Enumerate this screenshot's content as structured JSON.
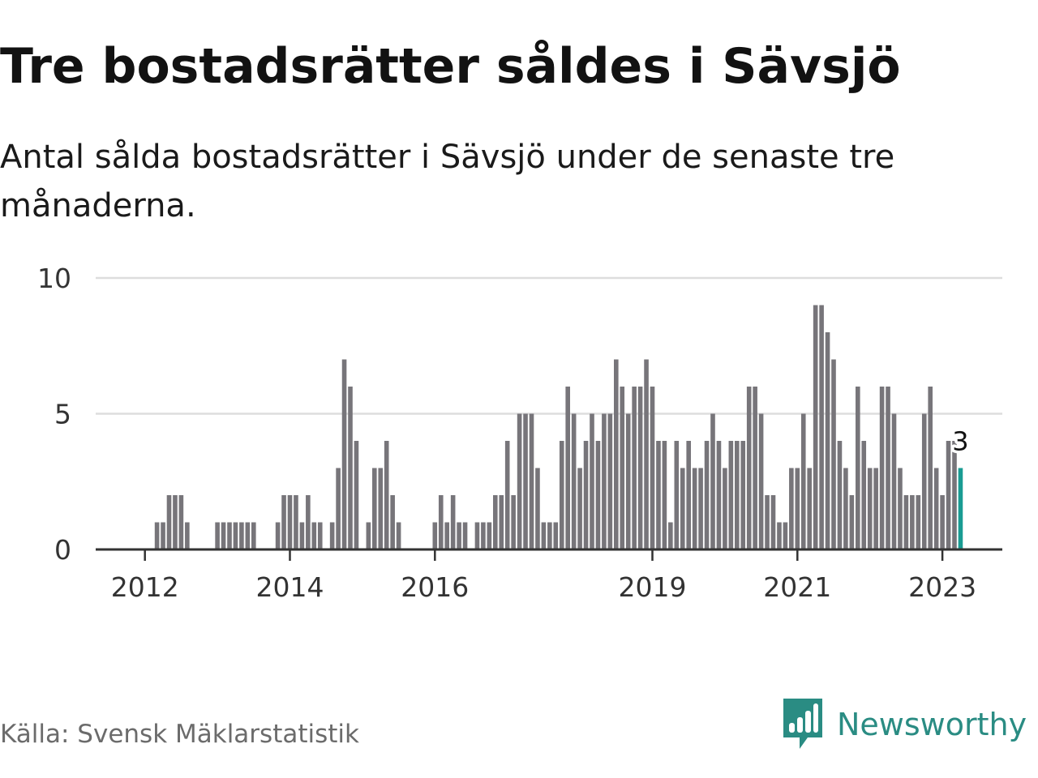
{
  "title": "Tre bostadsrätter såldes i Sävsjö",
  "subtitle": "Antal sålda bostadsrätter i Sävsjö under de senaste tre månaderna.",
  "source": "Källa: Svensk Mäklarstatistik",
  "brand": {
    "name": "Newsworthy",
    "logo_icon": "bar-chart-speech-bubble-icon"
  },
  "colors": {
    "bar": "#77757a",
    "highlight": "#1a9c93",
    "grid": "#dddddd",
    "axis": "#333333",
    "brand": "#2a8c83"
  },
  "chart_data": {
    "type": "bar",
    "title": "",
    "xlabel": "",
    "ylabel": "",
    "ylim": [
      0,
      10
    ],
    "yticks": [
      0,
      5,
      10
    ],
    "grid": true,
    "legend": "none",
    "start_month": "2011-11",
    "x_tick_labels": [
      "2012",
      "2014",
      "2016",
      "2019",
      "2021",
      "2023"
    ],
    "x_tick_months": [
      "2012-01",
      "2014-01",
      "2016-01",
      "2019-01",
      "2021-01",
      "2023-01"
    ],
    "highlight_label": "3",
    "values": [
      0,
      0,
      0,
      0,
      1,
      1,
      2,
      2,
      2,
      1,
      0,
      0,
      0,
      0,
      1,
      1,
      1,
      1,
      1,
      1,
      1,
      0,
      0,
      0,
      1,
      2,
      2,
      2,
      1,
      2,
      1,
      1,
      0,
      1,
      3,
      7,
      6,
      4,
      0,
      1,
      3,
      3,
      4,
      2,
      1,
      0,
      0,
      0,
      0,
      0,
      1,
      2,
      1,
      2,
      1,
      1,
      0,
      1,
      1,
      1,
      2,
      2,
      4,
      2,
      5,
      5,
      5,
      3,
      1,
      1,
      1,
      4,
      6,
      5,
      3,
      4,
      5,
      4,
      5,
      5,
      7,
      6,
      5,
      6,
      6,
      7,
      6,
      4,
      4,
      1,
      4,
      3,
      4,
      3,
      3,
      4,
      5,
      4,
      3,
      4,
      4,
      4,
      6,
      6,
      5,
      2,
      2,
      1,
      1,
      3,
      3,
      5,
      3,
      9,
      9,
      8,
      7,
      4,
      3,
      2,
      6,
      4,
      3,
      3,
      6,
      6,
      5,
      3,
      2,
      2,
      2,
      5,
      6,
      3,
      2,
      4,
      4,
      3
    ]
  }
}
